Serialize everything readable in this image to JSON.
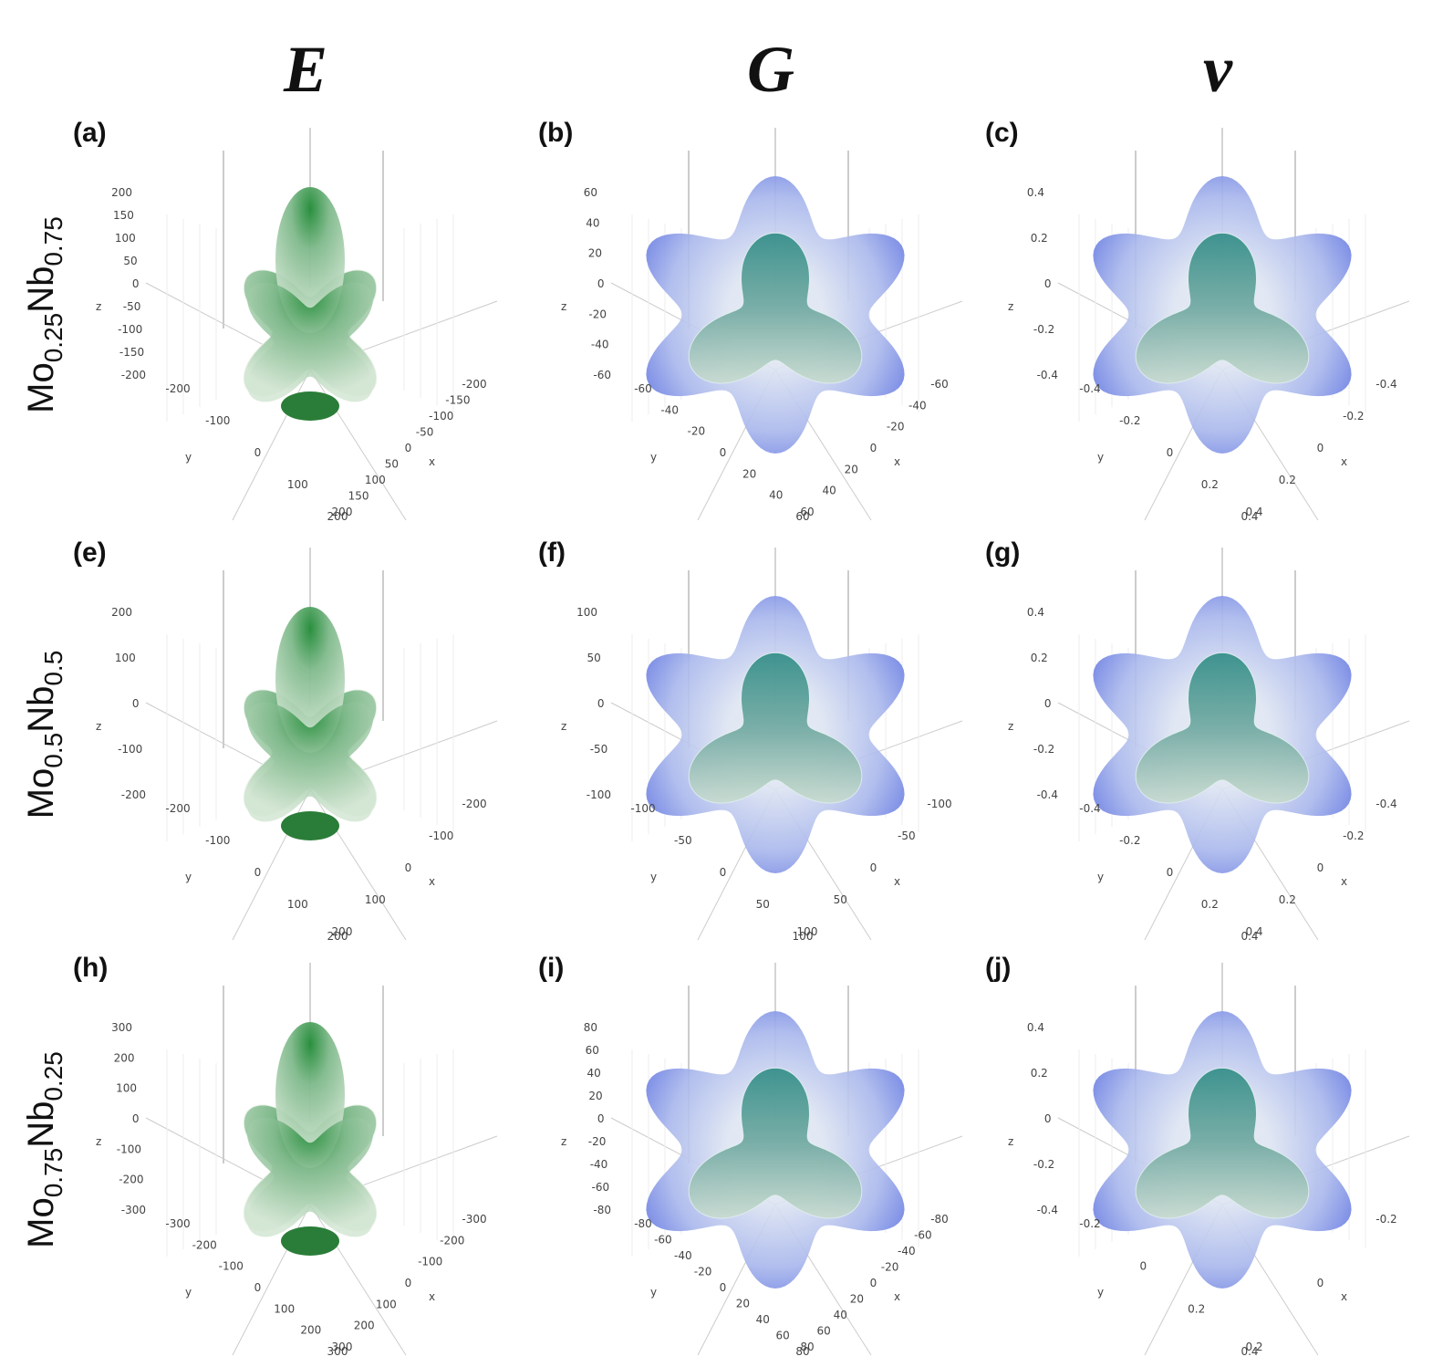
{
  "columns": [
    "E",
    "G",
    "ν"
  ],
  "rows": [
    {
      "base1": "Mo",
      "sub1": "0.25",
      "base2": "Nb",
      "sub2": "0.75"
    },
    {
      "base1": "Mo",
      "sub1": "0.5",
      "base2": "Nb",
      "sub2": "0.5"
    },
    {
      "base1": "Mo",
      "sub1": "0.75",
      "base2": "Nb",
      "sub2": "0.25"
    }
  ],
  "axis_names": {
    "z": "z",
    "y": "y",
    "x": "x"
  },
  "panels": [
    {
      "label": "(a)",
      "z_ticks": [
        200,
        150,
        100,
        50,
        0,
        -50,
        -100,
        -150,
        -200
      ],
      "y_ticks": [
        -200,
        -100,
        0,
        100,
        200
      ],
      "x_ticks": [
        -200,
        -150,
        -100,
        -50,
        0,
        50,
        100,
        150,
        200
      ]
    },
    {
      "label": "(b)",
      "z_ticks": [
        60,
        40,
        20,
        0,
        -20,
        -40,
        -60
      ],
      "y_ticks": [
        -60,
        -40,
        -20,
        0,
        20,
        40,
        60
      ],
      "x_ticks": [
        -60,
        -40,
        -20,
        0,
        20,
        40,
        60
      ]
    },
    {
      "label": "(c)",
      "z_ticks": [
        0.4,
        0.2,
        0,
        -0.2,
        -0.4
      ],
      "y_ticks": [
        -0.4,
        -0.2,
        0,
        0.2,
        0.4
      ],
      "x_ticks": [
        -0.4,
        -0.2,
        0,
        0.2,
        0.4
      ]
    },
    {
      "label": "(e)",
      "z_ticks": [
        200,
        100,
        0,
        -100,
        -200
      ],
      "y_ticks": [
        -200,
        -100,
        0,
        100,
        200
      ],
      "x_ticks": [
        -200,
        -100,
        0,
        100,
        200
      ]
    },
    {
      "label": "(f)",
      "z_ticks": [
        100,
        50,
        0,
        -50,
        -100
      ],
      "y_ticks": [
        -100,
        -50,
        0,
        50,
        100
      ],
      "x_ticks": [
        -100,
        -50,
        0,
        50,
        100
      ]
    },
    {
      "label": "(g)",
      "z_ticks": [
        0.4,
        0.2,
        0,
        -0.2,
        -0.4
      ],
      "y_ticks": [
        -0.4,
        -0.2,
        0,
        0.2,
        0.4
      ],
      "x_ticks": [
        -0.4,
        -0.2,
        0,
        0.2,
        0.4
      ]
    },
    {
      "label": "(h)",
      "z_ticks": [
        300,
        200,
        100,
        0,
        -100,
        -200,
        -300
      ],
      "y_ticks": [
        -300,
        -200,
        -100,
        0,
        100,
        200,
        300
      ],
      "x_ticks": [
        -300,
        -200,
        -100,
        0,
        100,
        200,
        300
      ]
    },
    {
      "label": "(i)",
      "z_ticks": [
        80,
        60,
        40,
        20,
        0,
        -20,
        -40,
        -60,
        -80
      ],
      "y_ticks": [
        -80,
        -60,
        -40,
        -20,
        0,
        20,
        40,
        60,
        80
      ],
      "x_ticks": [
        -80,
        -60,
        -40,
        -20,
        0,
        20,
        40,
        60,
        80
      ]
    },
    {
      "label": "(j)",
      "z_ticks": [
        0.4,
        0.2,
        0,
        -0.2,
        -0.4
      ],
      "y_ticks": [
        -0.2,
        0,
        0.2,
        0.4
      ],
      "x_ticks": [
        -0.2,
        0,
        0.2
      ]
    }
  ]
}
